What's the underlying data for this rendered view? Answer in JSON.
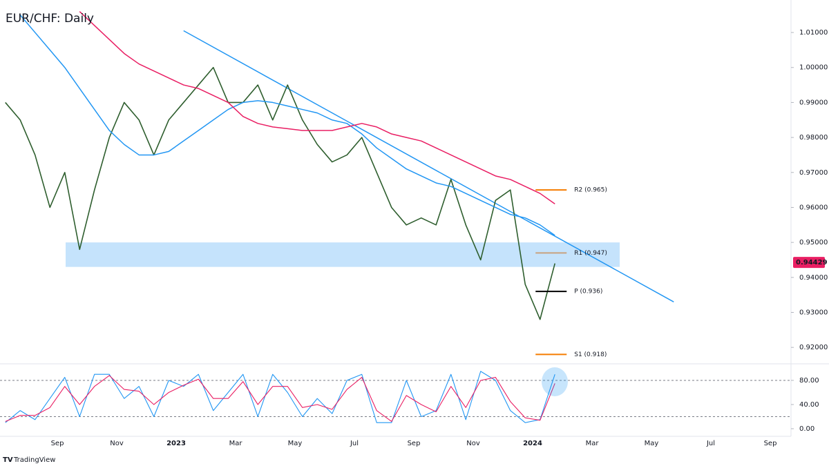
{
  "chart_data": [
    {
      "type": "line",
      "title": "EUR/CHF: Daily",
      "ylim": [
        0.9153,
        1.0183
      ],
      "yticks": [
        {
          "value": 0.92,
          "label": "0.92000"
        },
        {
          "value": 0.93,
          "label": "0.93000"
        },
        {
          "value": 0.94,
          "label": "0.94000"
        },
        {
          "value": 0.95,
          "label": "0.95000"
        },
        {
          "value": 0.96,
          "label": "0.96000"
        },
        {
          "value": 0.97,
          "label": "0.97000"
        },
        {
          "value": 0.98,
          "label": "0.98000"
        },
        {
          "value": 0.99,
          "label": "0.99000"
        },
        {
          "value": 1.0,
          "label": "1.00000"
        },
        {
          "value": 1.01,
          "label": "1.01000"
        }
      ],
      "series": [
        {
          "color": "#2e5e2e",
          "values": [
            0.99,
            0.985,
            0.975,
            0.96,
            0.97,
            0.948,
            0.965,
            0.98,
            0.99,
            0.985,
            0.975,
            0.985,
            0.99,
            0.995,
            1.0,
            0.99,
            0.99,
            0.995,
            0.985,
            0.995,
            0.985,
            0.978,
            0.973,
            0.975,
            0.98,
            0.97,
            0.96,
            0.955,
            0.957,
            0.955,
            0.968,
            0.955,
            0.945,
            0.962,
            0.965,
            0.938,
            0.928,
            0.944,
            null,
            null,
            null,
            null,
            null,
            null,
            null,
            null,
            null,
            null,
            null,
            null,
            null,
            null,
            null
          ]
        },
        {
          "color": "#2196f3",
          "values": [
            null,
            1.015,
            1.01,
            1.005,
            1.0,
            0.994,
            0.988,
            0.982,
            0.978,
            0.975,
            0.975,
            0.976,
            0.979,
            0.982,
            0.985,
            0.988,
            0.99,
            0.9905,
            0.99,
            0.989,
            0.988,
            0.987,
            0.985,
            0.984,
            0.981,
            0.977,
            0.974,
            0.971,
            0.969,
            0.967,
            0.966,
            0.964,
            0.962,
            0.96,
            0.958,
            0.957,
            0.955,
            0.952,
            null,
            null,
            null,
            null,
            null,
            null,
            null,
            null,
            null,
            null,
            null,
            null,
            null,
            null,
            null
          ]
        },
        {
          "color": "#e91e63",
          "values": [
            null,
            null,
            null,
            null,
            null,
            1.016,
            1.012,
            1.008,
            1.004,
            1.001,
            0.999,
            0.997,
            0.995,
            0.994,
            0.992,
            0.99,
            0.986,
            0.984,
            0.983,
            0.9825,
            0.982,
            0.982,
            0.982,
            0.983,
            0.984,
            0.983,
            0.981,
            0.98,
            0.979,
            0.977,
            0.975,
            0.973,
            0.971,
            0.969,
            0.968,
            0.966,
            0.964,
            0.961,
            null,
            null,
            null,
            null,
            null,
            null,
            null,
            null,
            null,
            null,
            null,
            null,
            null,
            null,
            null
          ]
        }
      ],
      "trendline": {
        "color": "#2196f3",
        "points": [
          [
            12,
            1.0105
          ],
          [
            45,
            0.933
          ]
        ]
      },
      "zone": {
        "color": "#bbdefb",
        "ylim": [
          0.943,
          0.95
        ]
      },
      "levels": [
        {
          "label": "R2 (0.965)",
          "value": 0.965,
          "color": "#f57c00"
        },
        {
          "label": "R1 (0.947)",
          "value": 0.947,
          "color": "#c9a27e"
        },
        {
          "label": "P (0.936)",
          "value": 0.936,
          "color": "#000000"
        },
        {
          "label": "S1 (0.918)",
          "value": 0.918,
          "color": "#f57c00"
        }
      ],
      "last_price": {
        "value": 0.94429,
        "label": "0.94429",
        "color": "#e91e63"
      }
    },
    {
      "type": "line",
      "categories": [
        null,
        null,
        null,
        null,
        "Sep",
        null,
        null,
        null,
        "Nov",
        null,
        null,
        null,
        "2023",
        null,
        null,
        null,
        "Mar",
        null,
        null,
        null,
        "May",
        null,
        null,
        null,
        "Jul",
        null,
        null,
        null,
        "Sep",
        null,
        null,
        null,
        "Nov",
        null,
        null,
        null,
        "2024",
        null,
        null,
        null,
        "Mar",
        null,
        null,
        null,
        "May",
        null,
        null,
        null,
        "Jul",
        null,
        null,
        null,
        "Sep"
      ],
      "ylim": [
        -12.6,
        107.4
      ],
      "yticks": [
        {
          "value": 0,
          "label": "0.00"
        },
        {
          "value": 40,
          "label": "40.00"
        },
        {
          "value": 80,
          "label": "80.00"
        }
      ],
      "levels": [
        20,
        80
      ],
      "series": [
        {
          "color": "#2196f3",
          "values": [
            10,
            30,
            15,
            50,
            85,
            20,
            90,
            90,
            50,
            70,
            20,
            80,
            70,
            90,
            30,
            60,
            90,
            20,
            90,
            60,
            20,
            50,
            25,
            80,
            90,
            10,
            10,
            80,
            20,
            30,
            90,
            15,
            95,
            80,
            30,
            10,
            15,
            90,
            null,
            null,
            null,
            null,
            null,
            null,
            null,
            null,
            null,
            null,
            null,
            null,
            null,
            null,
            null
          ]
        },
        {
          "color": "#e91e63",
          "values": [
            12,
            22,
            22,
            35,
            70,
            40,
            70,
            88,
            65,
            62,
            40,
            60,
            72,
            82,
            50,
            50,
            78,
            40,
            70,
            70,
            35,
            40,
            32,
            65,
            85,
            30,
            12,
            55,
            40,
            28,
            70,
            35,
            80,
            85,
            45,
            18,
            14,
            75,
            null,
            null,
            null,
            null,
            null,
            null,
            null,
            null,
            null,
            null,
            null,
            null,
            null,
            null,
            null
          ]
        }
      ],
      "source": "TradingView"
    }
  ]
}
